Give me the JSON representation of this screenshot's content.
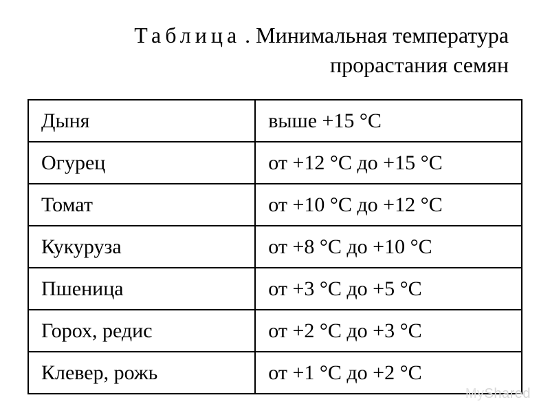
{
  "title": {
    "line1_spaced_word": "Таблица",
    "line1_rest": ". Минимальная температура",
    "line2": "прорастания семян",
    "fontsize": 32,
    "color": "#000000"
  },
  "table": {
    "border_color": "#000000",
    "border_width": 2,
    "cell_fontsize": 30,
    "col_widths_pct": [
      46,
      54
    ],
    "rows": [
      {
        "name": "Дыня",
        "temp": "выше +15 °C"
      },
      {
        "name": "Огурец",
        "temp": "от +12 °C до +15 °C"
      },
      {
        "name": "Томат",
        "temp": "от +10 °C до +12 °C"
      },
      {
        "name": "Кукуруза",
        "temp": "от +8 °C до +10 °C"
      },
      {
        "name": "Пшеница",
        "temp": "от +3 °C до +5 °C"
      },
      {
        "name": "Горох, редис",
        "temp": "от +2 °C до +3 °C"
      },
      {
        "name": "Клевер, рожь",
        "temp": "от +1 °C до +2 °C"
      }
    ]
  },
  "watermark": {
    "part1": "My",
    "part2": "Shared",
    "color": "#cfcfcf",
    "fontsize": 20
  },
  "background_color": "#ffffff"
}
